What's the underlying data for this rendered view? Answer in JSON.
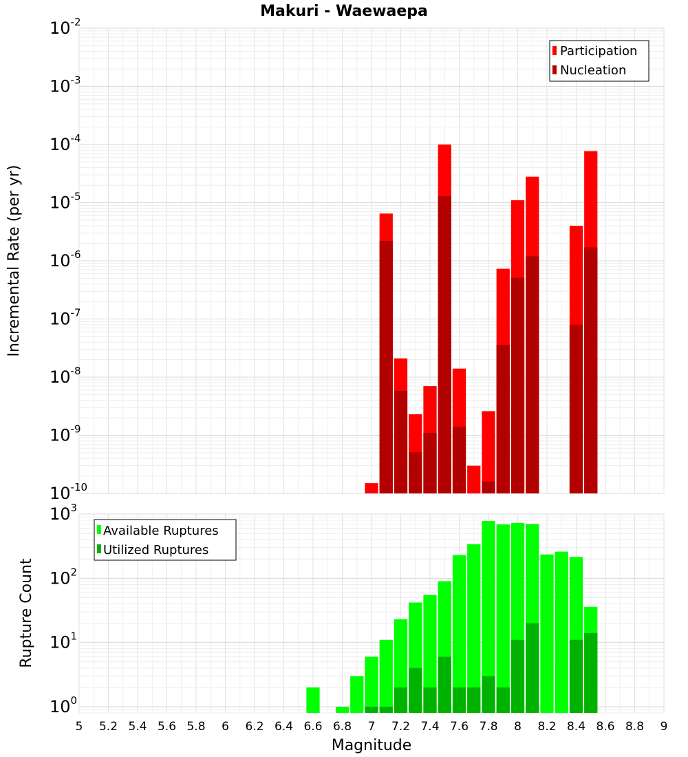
{
  "chart_data": {
    "title": "Makuri - Waewaepa",
    "xlabel": "Magnitude",
    "xlim": [
      5,
      9
    ],
    "bin_width": 0.1,
    "x_ticks": [
      "5",
      "5.2",
      "5.4",
      "5.6",
      "5.8",
      "6",
      "6.2",
      "6.4",
      "6.6",
      "6.8",
      "7",
      "7.2",
      "7.4",
      "7.6",
      "7.8",
      "8",
      "8.2",
      "8.4",
      "8.6",
      "8.8",
      "9"
    ],
    "grid": true,
    "panels": [
      {
        "type": "bar",
        "scale": "log",
        "ylabel": "Incremental Rate (per yr)",
        "ylim_exp": [
          -10,
          -2
        ],
        "y_ticks": [
          {
            "base": "10",
            "exp": "-10"
          },
          {
            "base": "10",
            "exp": "-9"
          },
          {
            "base": "10",
            "exp": "-8"
          },
          {
            "base": "10",
            "exp": "-7"
          },
          {
            "base": "10",
            "exp": "-6"
          },
          {
            "base": "10",
            "exp": "-5"
          },
          {
            "base": "10",
            "exp": "-4"
          },
          {
            "base": "10",
            "exp": "-3"
          },
          {
            "base": "10",
            "exp": "-2"
          }
        ],
        "legend_position": "top-right",
        "series": [
          {
            "name": "Participation",
            "color": "#ff0000",
            "points": [
              {
                "x": 7.0,
                "y": 1.5e-10
              },
              {
                "x": 7.1,
                "y": 6.5e-06
              },
              {
                "x": 7.2,
                "y": 2.1e-08
              },
              {
                "x": 7.3,
                "y": 2.3e-09
              },
              {
                "x": 7.4,
                "y": 7e-09
              },
              {
                "x": 7.5,
                "y": 0.0001
              },
              {
                "x": 7.6,
                "y": 1.4e-08
              },
              {
                "x": 7.7,
                "y": 3e-10
              },
              {
                "x": 7.8,
                "y": 2.6e-09
              },
              {
                "x": 7.9,
                "y": 7.3e-07
              },
              {
                "x": 8.0,
                "y": 1.1e-05
              },
              {
                "x": 8.1,
                "y": 2.8e-05
              },
              {
                "x": 8.4,
                "y": 4e-06
              },
              {
                "x": 8.5,
                "y": 7.7e-05
              }
            ]
          },
          {
            "name": "Nucleation",
            "color": "#b20000",
            "points": [
              {
                "x": 7.1,
                "y": 2.2e-06
              },
              {
                "x": 7.2,
                "y": 5.8e-09
              },
              {
                "x": 7.3,
                "y": 5.1e-10
              },
              {
                "x": 7.4,
                "y": 1.1e-09
              },
              {
                "x": 7.5,
                "y": 1.3e-05
              },
              {
                "x": 7.6,
                "y": 1.4e-09
              },
              {
                "x": 7.8,
                "y": 1.6e-10
              },
              {
                "x": 7.9,
                "y": 3.6e-08
              },
              {
                "x": 8.0,
                "y": 5.1e-07
              },
              {
                "x": 8.1,
                "y": 1.2e-06
              },
              {
                "x": 8.4,
                "y": 8e-08
              },
              {
                "x": 8.5,
                "y": 1.7e-06
              }
            ]
          }
        ]
      },
      {
        "type": "bar",
        "scale": "log",
        "ylabel": "Rupture Count",
        "ylim": [
          0.8,
          1000
        ],
        "y_ticks": [
          {
            "base": "10",
            "exp": "0"
          },
          {
            "base": "10",
            "exp": "1"
          },
          {
            "base": "10",
            "exp": "2"
          },
          {
            "base": "10",
            "exp": "3"
          }
        ],
        "legend_position": "top-left",
        "series": [
          {
            "name": "Available Ruptures",
            "color": "#00ff00",
            "points": [
              {
                "x": 6.6,
                "y": 2
              },
              {
                "x": 6.8,
                "y": 1
              },
              {
                "x": 6.9,
                "y": 3
              },
              {
                "x": 7.0,
                "y": 6
              },
              {
                "x": 7.1,
                "y": 11
              },
              {
                "x": 7.2,
                "y": 23
              },
              {
                "x": 7.3,
                "y": 42
              },
              {
                "x": 7.4,
                "y": 55
              },
              {
                "x": 7.5,
                "y": 90
              },
              {
                "x": 7.6,
                "y": 230
              },
              {
                "x": 7.7,
                "y": 340
              },
              {
                "x": 7.8,
                "y": 780
              },
              {
                "x": 7.9,
                "y": 690
              },
              {
                "x": 8.0,
                "y": 730
              },
              {
                "x": 8.1,
                "y": 700
              },
              {
                "x": 8.2,
                "y": 235
              },
              {
                "x": 8.3,
                "y": 260
              },
              {
                "x": 8.4,
                "y": 215
              },
              {
                "x": 8.5,
                "y": 36
              }
            ]
          },
          {
            "name": "Utilized Ruptures",
            "color": "#00b200",
            "points": [
              {
                "x": 7.0,
                "y": 1
              },
              {
                "x": 7.1,
                "y": 1
              },
              {
                "x": 7.2,
                "y": 2
              },
              {
                "x": 7.3,
                "y": 4
              },
              {
                "x": 7.4,
                "y": 2
              },
              {
                "x": 7.5,
                "y": 6
              },
              {
                "x": 7.6,
                "y": 2
              },
              {
                "x": 7.7,
                "y": 2
              },
              {
                "x": 7.8,
                "y": 3
              },
              {
                "x": 7.9,
                "y": 2
              },
              {
                "x": 8.0,
                "y": 11
              },
              {
                "x": 8.1,
                "y": 20
              },
              {
                "x": 8.4,
                "y": 11
              },
              {
                "x": 8.5,
                "y": 14
              }
            ]
          }
        ]
      }
    ]
  }
}
